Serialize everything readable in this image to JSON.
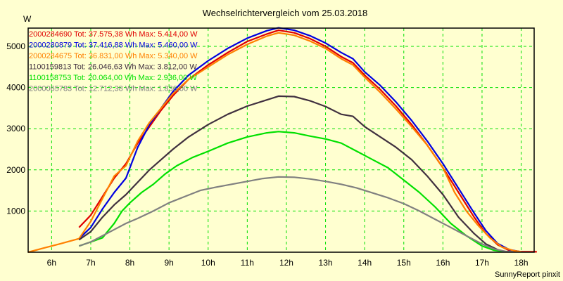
{
  "chart_data": {
    "type": "line",
    "title": "Wechselrichtervergleich vom 25.03.2018",
    "ylabel": "W",
    "xlabel": "",
    "credit": "SunnyReport pinxit",
    "xlim": [
      5.4,
      18.4
    ],
    "ylim": [
      0,
      5500
    ],
    "grid": true,
    "legend_position": "top-left",
    "x_ticks": [
      {
        "value": 6,
        "label": "6h"
      },
      {
        "value": 7,
        "label": "7h"
      },
      {
        "value": 8,
        "label": "8h"
      },
      {
        "value": 9,
        "label": "9h"
      },
      {
        "value": 10,
        "label": "10h"
      },
      {
        "value": 11,
        "label": "11h"
      },
      {
        "value": 12,
        "label": "12h"
      },
      {
        "value": 13,
        "label": "13h"
      },
      {
        "value": 14,
        "label": "14h"
      },
      {
        "value": 15,
        "label": "15h"
      },
      {
        "value": 16,
        "label": "16h"
      },
      {
        "value": 17,
        "label": "17h"
      },
      {
        "value": 18,
        "label": "18h"
      }
    ],
    "y_ticks": [
      {
        "value": 1000,
        "label": "1000"
      },
      {
        "value": 2000,
        "label": "2000"
      },
      {
        "value": 3000,
        "label": "3000"
      },
      {
        "value": 4000,
        "label": "4000"
      },
      {
        "value": 5000,
        "label": "5000"
      }
    ],
    "series": [
      {
        "name": "2000284690",
        "legend": "2000284690 Tot: 37.575,38 Wh Max: 5.414,00 W",
        "color": "#E00000",
        "x": [
          6.7,
          7.0,
          7.3,
          7.6,
          7.9,
          8.2,
          8.5,
          8.8,
          9.1,
          9.5,
          10.0,
          10.5,
          11.0,
          11.5,
          11.8,
          12.2,
          12.6,
          13.0,
          13.4,
          13.7,
          14.0,
          14.4,
          14.8,
          15.2,
          15.6,
          16.0,
          16.4,
          16.8,
          17.1,
          17.4,
          17.7,
          18.0,
          18.4
        ],
        "y": [
          600,
          900,
          1350,
          1800,
          2150,
          2650,
          3050,
          3450,
          3800,
          4200,
          4550,
          4850,
          5120,
          5300,
          5390,
          5330,
          5190,
          5000,
          4750,
          4600,
          4300,
          3950,
          3550,
          3100,
          2600,
          2050,
          1450,
          850,
          450,
          180,
          40,
          10,
          10
        ]
      },
      {
        "name": "2000280879",
        "legend": "2000280879 Tot: 37.416,88 Wh Max: 5.460,00 W",
        "color": "#0000E0",
        "x": [
          6.7,
          7.0,
          7.3,
          7.6,
          7.9,
          8.2,
          8.5,
          8.8,
          9.1,
          9.5,
          10.0,
          10.5,
          11.0,
          11.5,
          11.8,
          12.2,
          12.6,
          13.0,
          13.4,
          13.7,
          14.0,
          14.4,
          14.8,
          15.2,
          15.6,
          16.0,
          16.4,
          16.8,
          17.1,
          17.4,
          17.7,
          18.0
        ],
        "y": [
          330,
          600,
          1050,
          1450,
          1800,
          2550,
          3100,
          3500,
          3900,
          4300,
          4650,
          4950,
          5200,
          5380,
          5450,
          5390,
          5260,
          5080,
          4850,
          4700,
          4380,
          4050,
          3650,
          3200,
          2700,
          2150,
          1550,
          950,
          520,
          210,
          60,
          10
        ]
      },
      {
        "name": "2000284675",
        "legend": "2000284675 Tot: 36.831,00 Wh Max: 5.340,00 W",
        "color": "#FF8000",
        "x": [
          5.4,
          5.8,
          6.2,
          6.7,
          7.0,
          7.3,
          7.6,
          7.9,
          8.2,
          8.5,
          8.8,
          9.1,
          9.5,
          10.0,
          10.5,
          11.0,
          11.5,
          11.8,
          12.2,
          12.6,
          13.0,
          13.4,
          13.7,
          14.0,
          14.4,
          14.8,
          15.2,
          15.6,
          16.0,
          16.3,
          16.6,
          16.9,
          17.2,
          17.5,
          17.8,
          18.0
        ],
        "y": [
          0,
          100,
          200,
          330,
          750,
          1300,
          1850,
          2100,
          2700,
          3150,
          3500,
          3850,
          4200,
          4500,
          4800,
          5050,
          5250,
          5330,
          5270,
          5130,
          4950,
          4700,
          4550,
          4250,
          3880,
          3480,
          3050,
          2600,
          2050,
          1450,
          1000,
          650,
          350,
          130,
          40,
          10
        ]
      },
      {
        "name": "1100159813",
        "legend": "1100159813 Tot: 26.046,63 Wh Max: 3.812,00 W",
        "color": "#40303F",
        "x": [
          6.7,
          7.0,
          7.3,
          7.6,
          7.9,
          8.2,
          8.5,
          8.8,
          9.1,
          9.5,
          10.0,
          10.5,
          11.0,
          11.5,
          11.8,
          12.2,
          12.6,
          13.0,
          13.4,
          13.7,
          14.0,
          14.4,
          14.8,
          15.2,
          15.6,
          16.0,
          16.4,
          16.8,
          17.1,
          17.4,
          17.6
        ],
        "y": [
          300,
          500,
          850,
          1150,
          1400,
          1700,
          2000,
          2250,
          2500,
          2800,
          3100,
          3350,
          3550,
          3700,
          3790,
          3780,
          3680,
          3540,
          3350,
          3300,
          3050,
          2800,
          2550,
          2250,
          1850,
          1400,
          850,
          450,
          200,
          60,
          10
        ]
      },
      {
        "name": "1100158753",
        "legend": "1100158753 Tot: 20.064,00 Wh Max: 2.936,00 W",
        "color": "#00E000",
        "x": [
          6.7,
          7.0,
          7.3,
          7.6,
          7.8,
          8.0,
          8.3,
          8.6,
          8.9,
          9.2,
          9.6,
          10.0,
          10.5,
          11.0,
          11.5,
          11.8,
          12.2,
          12.6,
          13.0,
          13.4,
          13.8,
          14.2,
          14.6,
          15.0,
          15.4,
          15.8,
          16.2,
          16.6,
          17.0,
          17.3,
          17.6
        ],
        "y": [
          150,
          250,
          350,
          700,
          1000,
          1200,
          1450,
          1650,
          1900,
          2100,
          2300,
          2450,
          2650,
          2800,
          2900,
          2930,
          2900,
          2820,
          2750,
          2650,
          2450,
          2250,
          2050,
          1750,
          1450,
          1100,
          700,
          400,
          150,
          50,
          10
        ]
      },
      {
        "name": "2000065783",
        "legend": "2000065783 Tot: 12.712,38 Wh Max: 1.836,00 W",
        "color": "#808080",
        "x": [
          6.7,
          7.0,
          7.3,
          7.6,
          7.9,
          8.2,
          8.6,
          9.0,
          9.4,
          9.8,
          10.2,
          10.6,
          11.0,
          11.4,
          11.8,
          12.2,
          12.6,
          13.0,
          13.4,
          13.8,
          14.2,
          14.6,
          15.0,
          15.4,
          15.8,
          16.2,
          16.6,
          17.0,
          17.3,
          17.6,
          17.8
        ],
        "y": [
          150,
          250,
          400,
          550,
          700,
          820,
          1000,
          1200,
          1350,
          1500,
          1580,
          1650,
          1720,
          1790,
          1830,
          1820,
          1780,
          1720,
          1650,
          1560,
          1440,
          1320,
          1180,
          1000,
          800,
          600,
          400,
          200,
          80,
          20,
          10
        ]
      }
    ]
  }
}
